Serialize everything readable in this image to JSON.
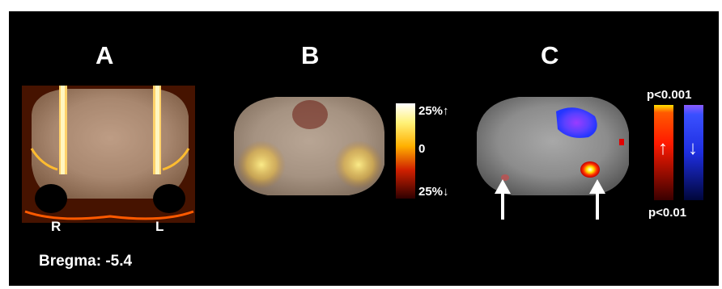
{
  "panels": {
    "a": {
      "letter": "A",
      "side_right": "R",
      "side_left": "L",
      "bregma": "Bregma: -5.4"
    },
    "b": {
      "letter": "B",
      "scale_top": "25%↑",
      "scale_mid": "0",
      "scale_bottom": "25%↓"
    },
    "c": {
      "letter": "C",
      "p_top": "p<0.001",
      "p_bottom": "p<0.01",
      "up_arrow": "↑",
      "down_arrow": "↓"
    }
  },
  "colors": {
    "background": "#000000",
    "text": "#ffffff",
    "increase": "#ff2a00",
    "decrease": "#2a3cff"
  },
  "icons": {
    "arrows": "white-arrow-icon"
  }
}
